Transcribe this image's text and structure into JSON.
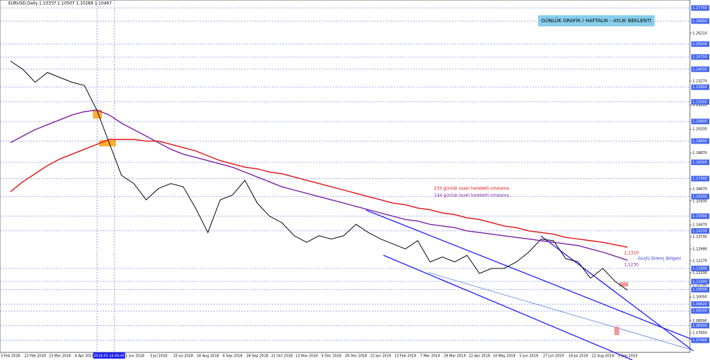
{
  "chart_data": {
    "type": "line",
    "header": "EURUSD,Daily  1.10337 1.10507 1.10289 1.10467",
    "title": "GÜNLÜK GRAFİK / HAFTALIK - AYLIK BEKLENTİ",
    "annotations": [
      "233 günlük üssel hareketli ortalama",
      "144 günlük üssel hareketli ortalama",
      "1,1310",
      "1,1230",
      "Güçlü Direnç Bölgesi"
    ],
    "categories": [
      "3 Feb 2018",
      null,
      "22 Feb 2018",
      null,
      "13 Mar 2018",
      null,
      "4 Apr 2018",
      null,
      "2018.05.14 00:00",
      null,
      "11 Jun 2018",
      null,
      "3 Jul 2018",
      null,
      "25 Jul 2018",
      null,
      "16 Aug 2018",
      null,
      "6 Sep 2018",
      null,
      "28 Sep 2018",
      null,
      "22 Oct 2018",
      null,
      "13 Nov 2018",
      null,
      "5 Dec 2018",
      null,
      "28 Dec 2018",
      null,
      "22 Jan 2019",
      null,
      "13 Feb 2019",
      null,
      "7 Mar 2019",
      null,
      "29 Mar 2019",
      null,
      "22 Apr 2019",
      null,
      "14 May 2019",
      null,
      "5 Jun 2019",
      null,
      "27 Jun 2019",
      null,
      "19 Jul 2019",
      null,
      "12 Aug 2019",
      null,
      "3 Sep 2019"
    ],
    "series": [
      {
        "name": "EURUSD",
        "color": "#000000",
        "values": [
          1.245,
          1.24,
          1.232,
          1.238,
          1.235,
          1.232,
          1.23,
          1.215,
          1.195,
          1.175,
          1.17,
          1.16,
          1.167,
          1.17,
          1.168,
          1.155,
          1.14,
          1.16,
          1.163,
          1.172,
          1.158,
          1.15,
          1.146,
          1.138,
          1.134,
          1.138,
          1.136,
          1.138,
          1.145,
          1.14,
          1.136,
          1.133,
          1.13,
          1.135,
          1.122,
          1.125,
          1.122,
          1.126,
          1.115,
          1.118,
          1.118,
          1.122,
          1.128,
          1.136,
          1.135,
          1.124,
          1.122,
          1.112,
          1.118,
          1.11,
          1.1047
        ]
      },
      {
        "name": "144",
        "color": "#7b1fa2",
        "values": [
          1.195,
          1.199,
          1.203,
          1.206,
          1.209,
          1.212,
          1.214,
          1.215,
          1.212,
          1.207,
          1.203,
          1.199,
          1.195,
          1.191,
          1.188,
          1.186,
          1.184,
          1.182,
          1.18,
          1.177,
          1.174,
          1.171,
          1.168,
          1.166,
          1.164,
          1.162,
          1.16,
          1.158,
          1.156,
          1.154,
          1.152,
          1.15,
          1.148,
          1.147,
          1.145,
          1.144,
          1.143,
          1.141,
          1.14,
          1.139,
          1.138,
          1.137,
          1.136,
          1.135,
          1.134,
          1.133,
          1.132,
          1.13,
          1.128,
          1.1255,
          1.123
        ]
      },
      {
        "name": "233",
        "color": "#e01010",
        "values": [
          1.165,
          1.171,
          1.176,
          1.181,
          1.185,
          1.188,
          1.191,
          1.194,
          1.197,
          1.197,
          1.197,
          1.196,
          1.196,
          1.194,
          1.192,
          1.19,
          1.187,
          1.184,
          1.182,
          1.18,
          1.179,
          1.177,
          1.176,
          1.174,
          1.172,
          1.17,
          1.168,
          1.166,
          1.164,
          1.162,
          1.16,
          1.158,
          1.157,
          1.155,
          1.154,
          1.152,
          1.151,
          1.149,
          1.148,
          1.146,
          1.144,
          1.143,
          1.141,
          1.14,
          1.139,
          1.137,
          1.136,
          1.135,
          1.134,
          1.1325,
          1.131
        ]
      }
    ],
    "ylim": [
      1.07,
      1.279
    ],
    "yticks": [
      {
        "value": 1.2621,
        "label": "1.26210"
      },
      {
        "value": 1.2327,
        "label": "1.23270"
      },
      {
        "value": 1.2181,
        "label": "1.21810"
      },
      {
        "value": 1.2033,
        "label": "1.20330"
      },
      {
        "value": 1.1887,
        "label": "1.18870"
      },
      {
        "value": 1.1667,
        "label": "1.16670"
      },
      {
        "value": 1.1593,
        "label": "1.15930"
      },
      {
        "value": 1.1447,
        "label": "1.14470"
      },
      {
        "value": 1.1373,
        "label": "1.13730"
      },
      {
        "value": 1.1299,
        "label": "1.12990"
      },
      {
        "value": 1.1227,
        "label": "1.12270"
      },
      {
        "value": 1.1153,
        "label": "1.11530"
      },
      {
        "value": 1.1079,
        "label": "1.10790"
      },
      {
        "value": 1.1005,
        "label": "1.10050"
      },
      {
        "value": 1.0859,
        "label": "1.08590"
      },
      {
        "value": 1.0785,
        "label": "1.07850"
      }
    ],
    "levels": [
      {
        "value": 1.2775,
        "label": "1.27750"
      },
      {
        "value": 1.2695,
        "label": "1.26950"
      },
      {
        "value": 1.2554,
        "label": "1.25540"
      },
      {
        "value": 1.2475,
        "label": "1.24750"
      },
      {
        "value": 1.24,
        "label": "1.24000"
      },
      {
        "value": 1.229,
        "label": "1.22900"
      },
      {
        "value": 1.22,
        "label": "1.22000"
      },
      {
        "value": 1.208,
        "label": "1.20800"
      },
      {
        "value": 1.196,
        "label": "1.19600"
      },
      {
        "value": 1.183,
        "label": "1.18300"
      },
      {
        "value": 1.173,
        "label": "1.17300"
      },
      {
        "value": 1.162,
        "label": "1.16200"
      },
      {
        "value": 1.15,
        "label": "1.15000"
      },
      {
        "value": 1.141,
        "label": "1.14100"
      },
      {
        "value": 1.118,
        "label": "1.11800"
      },
      {
        "value": 1.11,
        "label": "1.11000"
      },
      {
        "value": 1.105,
        "label": "1.10500"
      },
      {
        "value": 1.0962,
        "label": "1.09620"
      },
      {
        "value": 1.092,
        "label": "1.09200"
      },
      {
        "value": 1.083,
        "label": "1.08300"
      },
      {
        "value": 1.074,
        "label": "1.07400"
      }
    ]
  }
}
